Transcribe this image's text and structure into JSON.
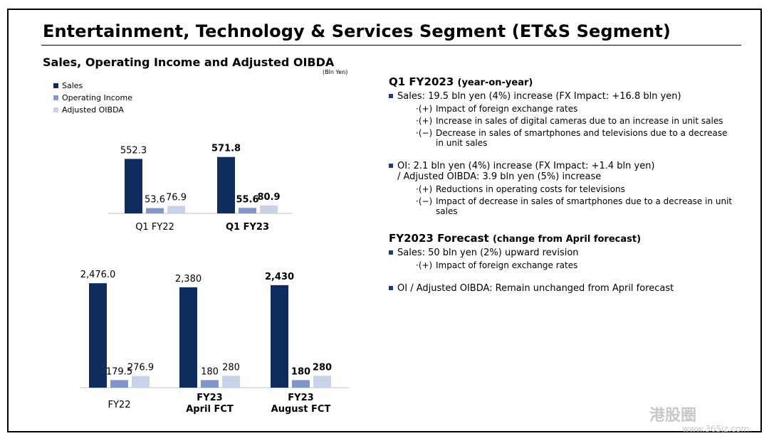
{
  "header": {
    "title": "Entertainment, Technology & Services Segment (ET&S Segment)",
    "chart_title": "Sales, Operating Income and Adjusted OIBDA",
    "unit": "(Bln Yen)"
  },
  "legend": [
    {
      "label": "Sales",
      "color": "#0e2d5e"
    },
    {
      "label": "Operating Income",
      "color": "#8296c9"
    },
    {
      "label": "Adjusted OIBDA",
      "color": "#c9d3e8"
    }
  ],
  "chart_data": [
    {
      "type": "bar",
      "categories": [
        "Q1 FY22",
        "Q1 FY23"
      ],
      "series": [
        {
          "name": "Sales",
          "values": [
            552.3,
            571.8
          ],
          "labels": [
            "552.3",
            "571.8"
          ]
        },
        {
          "name": "Operating Income",
          "values": [
            53.6,
            55.6
          ],
          "labels": [
            "53.6",
            "55.6"
          ]
        },
        {
          "name": "Adjusted OIBDA",
          "values": [
            76.9,
            80.9
          ],
          "labels": [
            "76.9",
            "80.9"
          ]
        }
      ],
      "bold_categories": [
        1
      ]
    },
    {
      "type": "bar",
      "categories": [
        "FY22",
        "FY23 April FCT",
        "FY23 August FCT"
      ],
      "category_lines": [
        [
          "FY22"
        ],
        [
          "FY23",
          "April FCT"
        ],
        [
          "FY23",
          "August FCT"
        ]
      ],
      "series": [
        {
          "name": "Sales",
          "values": [
            2476.0,
            2380,
            2430
          ],
          "labels": [
            "2,476.0",
            "2,380",
            "2,430"
          ]
        },
        {
          "name": "Operating Income",
          "values": [
            179.5,
            180,
            180
          ],
          "labels": [
            "179.5",
            "180",
            "180"
          ]
        },
        {
          "name": "Adjusted OIBDA",
          "values": [
            276.9,
            280,
            280
          ],
          "labels": [
            "276.9",
            "280",
            "280"
          ]
        }
      ],
      "bold_categories": [
        2
      ]
    }
  ],
  "right": {
    "q1_heading": "Q1 FY2023",
    "q1_heading_note": "(year-on-year)",
    "sales_bullet": "Sales: 19.5 bln yen (4%) increase (FX Impact: +16.8 bln yen)",
    "sales_items": [
      {
        "mark": "·(+)",
        "text": "Impact of foreign exchange rates"
      },
      {
        "mark": "·(+)",
        "text": "Increase in sales of digital cameras due to an increase in unit sales"
      },
      {
        "mark": "·(−)",
        "text": "Decrease in sales of smartphones and televisions due to a decrease in unit sales"
      }
    ],
    "oi_bullet": "OI: 2.1 bln yen (4%) increase (FX Impact: +1.4 bln yen)",
    "oi_bullet_cont": "/ Adjusted OIBDA: 3.9 bln yen (5%) increase",
    "oi_items": [
      {
        "mark": "·(+)",
        "text": "Reductions in operating costs for televisions"
      },
      {
        "mark": "·(−)",
        "text": "Impact of decrease in sales of smartphones due to a decrease in unit sales"
      }
    ],
    "fc_heading": "FY2023 Forecast",
    "fc_heading_note": "(change from April forecast)",
    "fc_sales_bullet": "Sales: 50 bln yen (2%) upward revision",
    "fc_sales_items": [
      {
        "mark": "·(+)",
        "text": "Impact of foreign exchange rates"
      }
    ],
    "fc_oi_bullet": "OI / Adjusted OIBDA:  Remain unchanged from April forecast"
  },
  "watermark": {
    "text": "港股圈",
    "url": "www.365jz.com"
  }
}
